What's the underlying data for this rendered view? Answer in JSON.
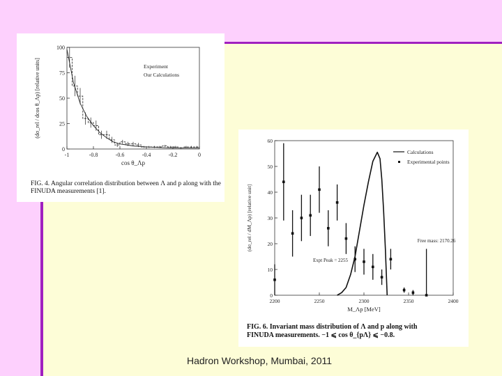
{
  "slide": {
    "footer": "Hadron Workshop, Mumbai, 2011"
  },
  "chart_data": [
    {
      "type": "line",
      "ylabel": "(dσ_rel / dcos θ_Λp) [relative units]",
      "xlabel": "cos θ_Λp",
      "xlim": [
        -1,
        0
      ],
      "ylim": [
        0,
        100
      ],
      "x_ticks": [
        "-1",
        "-0.8",
        "-0.6",
        "-0.4",
        "-0.2",
        "0"
      ],
      "y_ticks": [
        "0",
        "25",
        "50",
        "75",
        "100"
      ],
      "legend": [
        "Experiment",
        "Our Calculations"
      ],
      "caption": "FIG. 4. Angular correlation distribution between Λ and p along with the FINUDA measurements [1].",
      "series": [
        {
          "name": "Experiment",
          "style": "histogram",
          "x": [
            -1.0,
            -0.96,
            -0.92,
            -0.88,
            -0.84,
            -0.8,
            -0.76,
            -0.72,
            -0.68,
            -0.64,
            -0.6,
            -0.56,
            -0.52,
            -0.48,
            -0.44,
            -0.4,
            -0.36,
            -0.32,
            -0.28,
            -0.24,
            -0.2,
            -0.16,
            -0.12,
            -0.08,
            -0.04
          ],
          "values": [
            90,
            62,
            52,
            30,
            26,
            23,
            14,
            14,
            9,
            4,
            7,
            5,
            5,
            4,
            2,
            2,
            2,
            2,
            3,
            2,
            2,
            1,
            2,
            2,
            2
          ],
          "errors": [
            10,
            10,
            8,
            6,
            5,
            5,
            4,
            4,
            3,
            2,
            2,
            2,
            2,
            2,
            1,
            1,
            1,
            1,
            1,
            1,
            1,
            1,
            1,
            1,
            1
          ]
        },
        {
          "name": "Our Calculations",
          "style": "smooth",
          "x": [
            -1.0,
            -0.95,
            -0.9,
            -0.85,
            -0.8,
            -0.75,
            -0.7,
            -0.65,
            -0.6,
            -0.5,
            -0.4,
            -0.3,
            -0.2,
            -0.1,
            0.0
          ],
          "values": [
            98,
            65,
            45,
            32,
            23,
            16,
            11,
            7,
            5,
            3,
            2,
            1.5,
            1,
            1,
            1
          ]
        }
      ]
    },
    {
      "type": "scatter",
      "ylabel": "(dσ_rel / dM_Λp) [relative unit]",
      "xlabel": "M_Λp [MeV]",
      "xlim": [
        2200,
        2400
      ],
      "ylim": [
        0,
        60
      ],
      "x_ticks": [
        "2200",
        "2250",
        "2300",
        "2350",
        "2400"
      ],
      "y_ticks": [
        "0",
        "10",
        "20",
        "30",
        "40",
        "50",
        "60"
      ],
      "legend": [
        "Calculations",
        "Experimental points"
      ],
      "annotations": [
        {
          "text": "Expt Peak = 2255",
          "x": 2243,
          "y": 13
        },
        {
          "text": "Free mass: 2170.26",
          "x": 2360,
          "y": 20.6
        }
      ],
      "caption_line1": "FIG. 6. Invariant mass distribution of Λ and p along with",
      "caption_line2": "FINUDA measurements. −1 ⩽ cos θ_{pΛ} ⩽ −0.8.",
      "series": [
        {
          "name": "Experimental points",
          "x": [
            2200,
            2210,
            2220,
            2230,
            2240,
            2250,
            2260,
            2270,
            2280,
            2290,
            2300,
            2310,
            2320,
            2330,
            2345,
            2355,
            2370
          ],
          "values": [
            6,
            44,
            24,
            30,
            31,
            41,
            26,
            36,
            22,
            14,
            13,
            11,
            7,
            14,
            2,
            1,
            0
          ],
          "errors": [
            6,
            15,
            9,
            9,
            8,
            9,
            7,
            7,
            6,
            5,
            5,
            5,
            3,
            4,
            1,
            1,
            18
          ]
        },
        {
          "name": "Calculations",
          "x": [
            2270,
            2275,
            2280,
            2285,
            2290,
            2295,
            2300,
            2305,
            2310,
            2315,
            2318,
            2320,
            2322,
            2324,
            2326
          ],
          "values": [
            0,
            1,
            3,
            8,
            15,
            25,
            35,
            44,
            52,
            55.5,
            53,
            45,
            33,
            18,
            0
          ]
        }
      ]
    }
  ]
}
